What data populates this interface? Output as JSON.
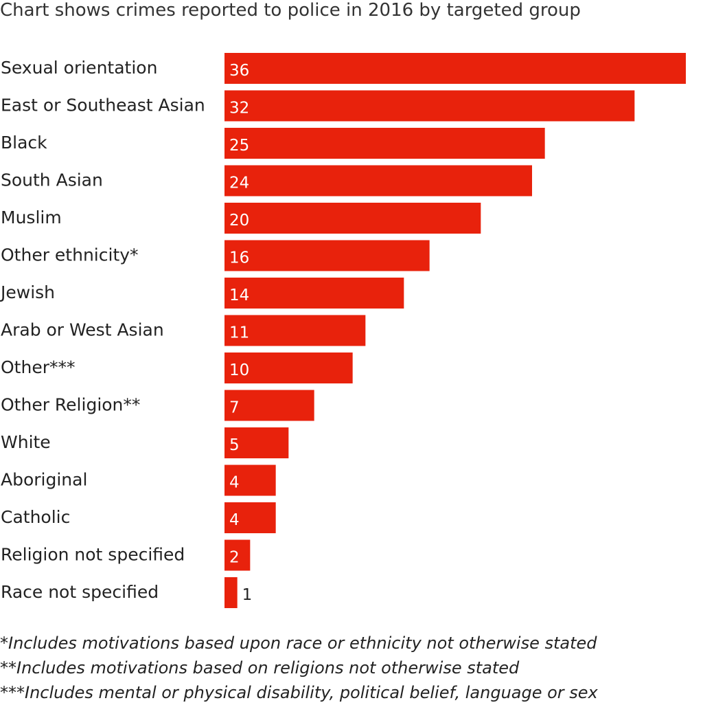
{
  "chart_data": {
    "type": "bar",
    "orientation": "horizontal",
    "subtitle": "Chart shows crimes reported to police in 2016 by targeted group",
    "categories": [
      "Sexual orientation",
      "East or Southeast Asian",
      "Black",
      "South Asian",
      "Muslim",
      "Other ethnicity*",
      "Jewish",
      "Arab or West Asian",
      "Other***",
      "Other Religion**",
      "White",
      "Aboriginal",
      "Catholic",
      "Religion not specified",
      "Race not specified"
    ],
    "values": [
      36,
      32,
      25,
      24,
      20,
      16,
      14,
      11,
      10,
      7,
      5,
      4,
      4,
      2,
      1
    ],
    "data_labels": [
      "36",
      "32",
      "25",
      "24",
      "20",
      "16",
      "14",
      "11",
      "10",
      "7",
      "5",
      "4",
      "4",
      "2",
      "1"
    ],
    "bar_color": "#e8220c",
    "grid": false,
    "legend": "none",
    "xlim": [
      0,
      36
    ]
  },
  "footnotes": [
    "*Includes motivations based upon race or ethnicity not otherwise stated",
    "**Includes motivations based on religions not otherwise stated",
    "***Includes mental or physical disability, political belief, language or sex"
  ]
}
